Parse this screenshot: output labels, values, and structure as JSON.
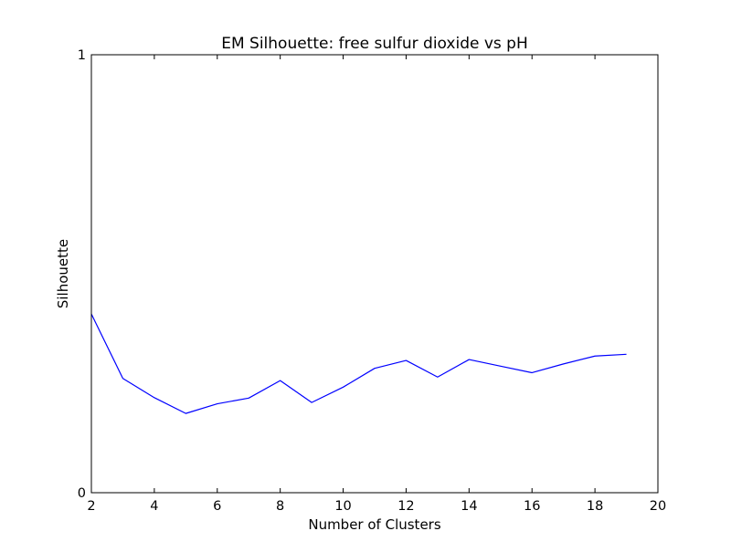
{
  "chart_data": {
    "type": "line",
    "title": "EM Silhouette: free sulfur dioxide vs pH",
    "xlabel": "Number of Clusters",
    "ylabel": "Silhouette",
    "xlim": [
      2,
      20
    ],
    "ylim": [
      0,
      1
    ],
    "x_ticks": [
      "2",
      "4",
      "6",
      "8",
      "10",
      "12",
      "14",
      "16",
      "18",
      "20"
    ],
    "y_ticks": [
      "0",
      "1"
    ],
    "grid": false,
    "legend": "none",
    "series": [
      {
        "color": "#0000ff",
        "x": [
          2,
          3,
          4,
          5,
          6,
          7,
          8,
          9,
          10,
          11,
          12,
          13,
          14,
          15,
          16,
          17,
          18,
          19
        ],
        "y": [
          0.408,
          0.261,
          0.217,
          0.181,
          0.203,
          0.216,
          0.256,
          0.206,
          0.241,
          0.284,
          0.302,
          0.264,
          0.304,
          0.289,
          0.274,
          0.294,
          0.312,
          0.316
        ]
      }
    ]
  }
}
